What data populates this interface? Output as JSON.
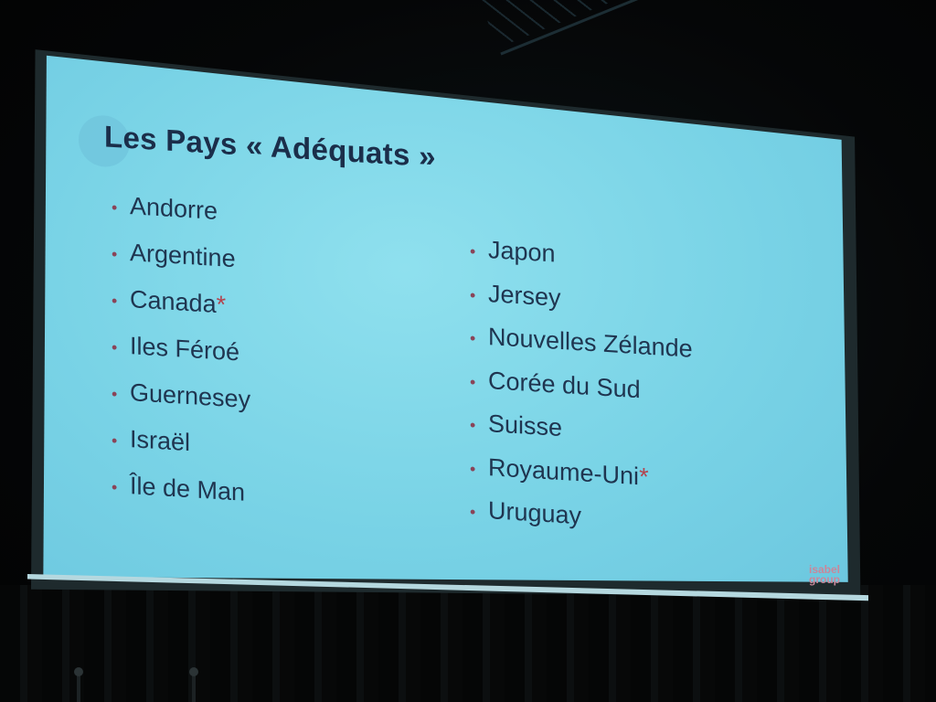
{
  "slide": {
    "title": "Les Pays « Adéquats »",
    "left_column": [
      {
        "name": "Andorre",
        "mark": ""
      },
      {
        "name": "Argentine",
        "mark": ""
      },
      {
        "name": "Canada",
        "mark": "*"
      },
      {
        "name": "Iles Féroé",
        "mark": ""
      },
      {
        "name": "Guernesey",
        "mark": ""
      },
      {
        "name": "Israël",
        "mark": ""
      },
      {
        "name": "Île de Man",
        "mark": ""
      }
    ],
    "right_column": [
      {
        "name": "Japon",
        "mark": ""
      },
      {
        "name": "Jersey",
        "mark": ""
      },
      {
        "name": "Nouvelles Zélande",
        "mark": ""
      },
      {
        "name": "Corée du Sud",
        "mark": ""
      },
      {
        "name": "Suisse",
        "mark": ""
      },
      {
        "name": "Royaume-Uni",
        "mark": "*"
      },
      {
        "name": "Uruguay",
        "mark": ""
      }
    ],
    "bullet_glyph": "•",
    "logo": {
      "line1": "isabel",
      "line2": "group"
    }
  },
  "colors": {
    "screen": "#79d3e6",
    "title": "#1b2e4a",
    "text": "#1f3550",
    "bullet": "#8a4458",
    "asterisk": "#b3434e",
    "logo": "#c9879a"
  }
}
